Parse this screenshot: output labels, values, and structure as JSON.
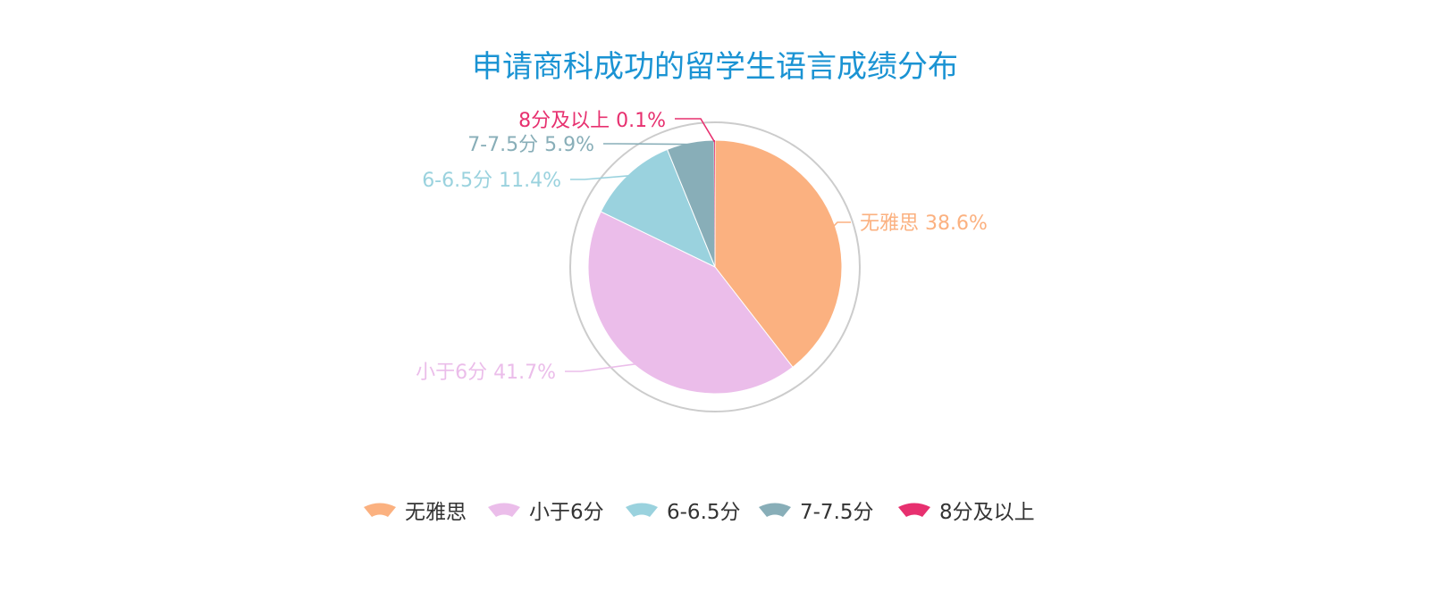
{
  "chart_data": {
    "type": "pie",
    "title": "申请商科成功的留学生语言成绩分布",
    "series": [
      {
        "name": "无雅思",
        "value": 38.6,
        "label": "无雅思 38.6%",
        "color": "#fbb180"
      },
      {
        "name": "小于6分",
        "value": 41.7,
        "label": "小于6分 41.7%",
        "color": "#ebbdea"
      },
      {
        "name": "6-6.5分",
        "value": 11.4,
        "label": "6-6.5分 11.4%",
        "color": "#9ad2de"
      },
      {
        "name": "7-7.5分",
        "value": 5.9,
        "label": "7-7.5分 5.9%",
        "color": "#88aeb8"
      },
      {
        "name": "8分及以上",
        "value": 0.1,
        "label": "8分及以上 0.1%",
        "color": "#e7306f"
      }
    ],
    "legend_position": "bottom",
    "title_color": "#1a93d3",
    "ring_color": "#cccccc"
  }
}
